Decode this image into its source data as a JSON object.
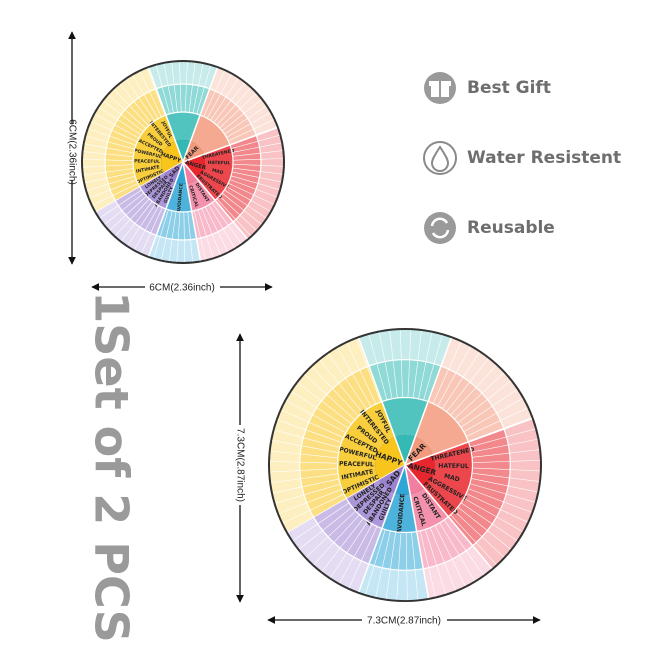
{
  "features": [
    "Best Gift",
    "Water Resistent",
    "Reusable"
  ],
  "small_size": "6CM(2.36inch)",
  "large_size": "7.3CM(2.87inch)",
  "quantity": "1Set of 2 PCS",
  "wheel": {
    "sectors": [
      {
        "name": "HAPPY",
        "color": "#f7c51b",
        "words": [
          "OPTIMISTIC",
          "INTIMATE",
          "PEACEFUL",
          "POWERFUL",
          "ACCEPTED",
          "PROUD",
          "INTERESTED",
          "JOYFUL"
        ]
      },
      {
        "color": "#34b9b4"
      },
      {
        "name": "FEAR",
        "color": "#f39a7c"
      },
      {
        "name": "ANGER",
        "color": "#e8262e",
        "words": [
          "THREATENED",
          "HATEFUL",
          "MAD",
          "AGGRESSIVE",
          "FRUSTRATED"
        ]
      },
      {
        "color": "#f27fa0",
        "words": [
          "DISTANT",
          "CRITICAL"
        ]
      },
      {
        "color": "#2fa6d6",
        "words": [
          "AVOIDANCE"
        ]
      },
      {
        "name": "SAD",
        "color": "#9c83d2",
        "words": [
          "GUILTY",
          "ABANDONED",
          "DESPAIR",
          "DEPRESSED",
          "LONELY"
        ]
      }
    ]
  }
}
